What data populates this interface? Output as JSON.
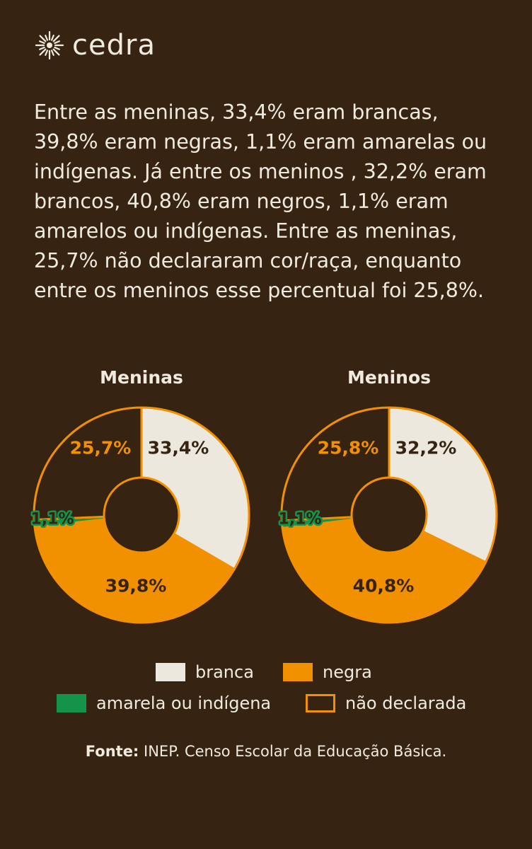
{
  "brand": {
    "name": "cedra"
  },
  "intro_text": "Entre as meninas, 33,4% eram brancas, 39,8% eram negras, 1,1% eram amarelas ou indígenas. Já entre os meninos , 32,2% eram brancos, 40,8% eram negros, 1,1% eram amarelos ou indígenas. Entre as meninas, 25,7% não declararam cor/raça, enquanto entre os meninos esse percentual foi 25,8%.",
  "colors": {
    "background": "#372312",
    "text": "#efebe0",
    "branca": "#ece8dd",
    "negra": "#f29100",
    "amarela_ou_indigena": "#14934a",
    "nao_declarada_border": "#f29100"
  },
  "chart_data": [
    {
      "type": "pie",
      "title": "Meninas",
      "categories": [
        "branca",
        "negra",
        "amarela ou indígena",
        "não declarada"
      ],
      "values": [
        33.4,
        39.8,
        1.1,
        25.7
      ],
      "labels": [
        "33,4%",
        "39,8%",
        "1,1%",
        "25,7%"
      ]
    },
    {
      "type": "pie",
      "title": "Meninos",
      "categories": [
        "branca",
        "negra",
        "amarela ou indígena",
        "não declarada"
      ],
      "values": [
        32.2,
        40.8,
        1.1,
        25.8
      ],
      "labels": [
        "32,2%",
        "40,8%",
        "1,1%",
        "25,8%"
      ]
    }
  ],
  "legend": {
    "branca": "branca",
    "negra": "negra",
    "amarela": "amarela ou indígena",
    "nao_declarada": "não declarada"
  },
  "source": {
    "label": "Fonte:",
    "text": "INEP. Censo Escolar da Educação Básica."
  }
}
